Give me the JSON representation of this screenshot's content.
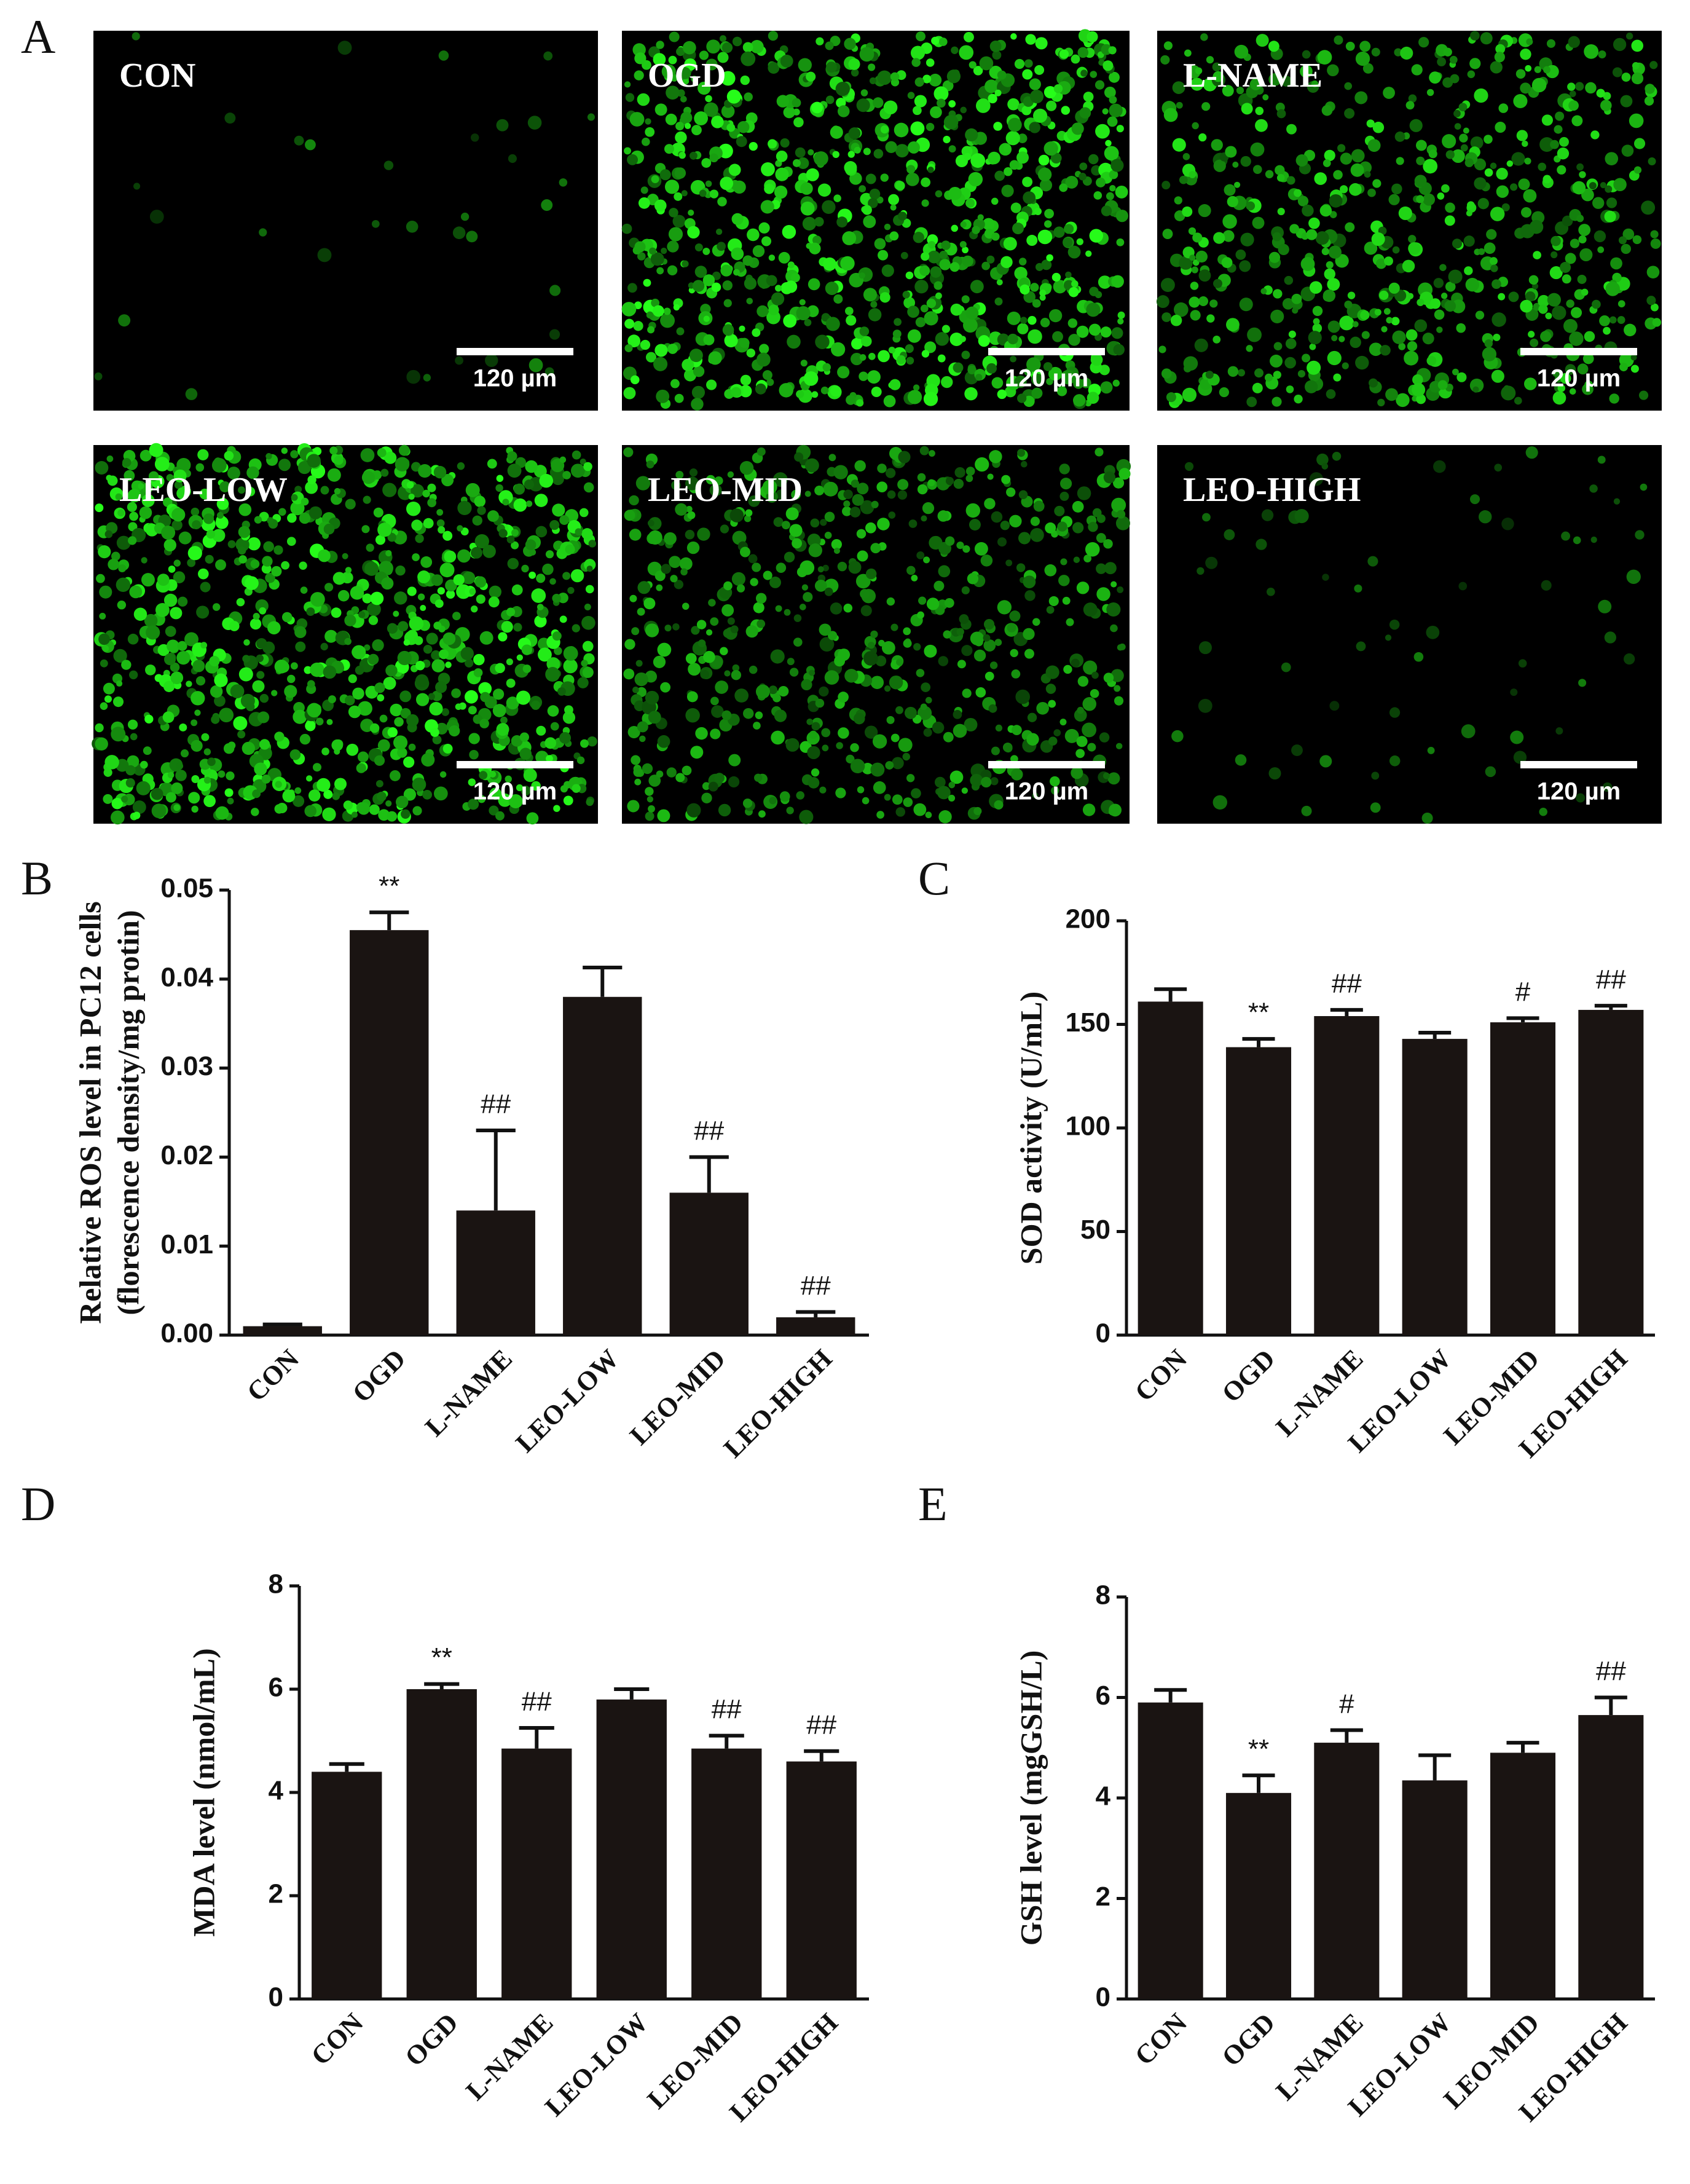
{
  "panel_labels": [
    "A",
    "B",
    "C",
    "D",
    "E"
  ],
  "micrographs": [
    {
      "label": "CON",
      "scale_bar": "120 µm"
    },
    {
      "label": "OGD",
      "scale_bar": "120 µm"
    },
    {
      "label": "L-NAME",
      "scale_bar": "120 µm"
    },
    {
      "label": "LEO-LOW",
      "scale_bar": "120 µm"
    },
    {
      "label": "LEO-MID",
      "scale_bar": "120 µm"
    },
    {
      "label": "LEO-HIGH",
      "scale_bar": "120 µm"
    }
  ],
  "chart_data": [
    {
      "type": "bar",
      "ylabel": [
        "Relative ROS level in PC12 cells",
        "(florescence density/mg protin)"
      ],
      "categories": [
        "CON",
        "OGD",
        "L-NAME",
        "LEO-LOW",
        "LEO-MID",
        "LEO-HIGH"
      ],
      "values": [
        0.001,
        0.0455,
        0.014,
        0.038,
        0.016,
        0.002
      ],
      "errors": [
        0.0002,
        0.002,
        0.009,
        0.0033,
        0.004,
        0.0006
      ],
      "annotations": [
        null,
        "**",
        "##",
        null,
        "##",
        "##"
      ],
      "color": "#1a1412",
      "ylim": [
        0,
        0.05
      ],
      "yticks": [
        {
          "value": 0,
          "label": "0.00"
        },
        {
          "value": 0.01,
          "label": "0.01"
        },
        {
          "value": 0.02,
          "label": "0.02"
        },
        {
          "value": 0.03,
          "label": "0.03"
        },
        {
          "value": 0.04,
          "label": "0.04"
        },
        {
          "value": 0.05,
          "label": "0.05"
        }
      ]
    },
    {
      "type": "bar",
      "ylabel": [
        "SOD activity (U/mL)"
      ],
      "categories": [
        "CON",
        "OGD",
        "L-NAME",
        "LEO-LOW",
        "LEO-MID",
        "LEO-HIGH"
      ],
      "values": [
        161,
        139,
        154,
        143,
        151,
        157
      ],
      "errors": [
        6,
        4,
        3,
        3,
        2,
        2
      ],
      "annotations": [
        null,
        "**",
        "##",
        null,
        "#",
        "##"
      ],
      "color": "#1a1412",
      "ylim": [
        0,
        200
      ],
      "yticks": [
        0,
        50,
        100,
        150,
        200
      ]
    },
    {
      "type": "bar",
      "ylabel": [
        "MDA level (nmol/mL)"
      ],
      "categories": [
        "CON",
        "OGD",
        "L-NAME",
        "LEO-LOW",
        "LEO-MID",
        "LEO-HIGH"
      ],
      "values": [
        4.4,
        6.0,
        4.85,
        5.8,
        4.85,
        4.6
      ],
      "errors": [
        0.15,
        0.1,
        0.4,
        0.2,
        0.25,
        0.2
      ],
      "annotations": [
        null,
        "**",
        "##",
        null,
        "##",
        "##"
      ],
      "color": "#1a1412",
      "ylim": [
        0,
        8
      ],
      "yticks": [
        0,
        2,
        4,
        6,
        8
      ]
    },
    {
      "type": "bar",
      "ylabel": [
        "GSH level (mgGSH/L)"
      ],
      "categories": [
        "CON",
        "OGD",
        "L-NAME",
        "LEO-LOW",
        "LEO-MID",
        "LEO-HIGH"
      ],
      "values": [
        5.9,
        4.1,
        5.1,
        4.35,
        4.9,
        5.65
      ],
      "errors": [
        0.25,
        0.35,
        0.25,
        0.5,
        0.2,
        0.35
      ],
      "annotations": [
        null,
        "**",
        "#",
        null,
        null,
        "##"
      ],
      "color": "#1a1412",
      "ylim": [
        0,
        8
      ],
      "yticks": [
        0,
        2,
        4,
        6,
        8
      ]
    }
  ]
}
